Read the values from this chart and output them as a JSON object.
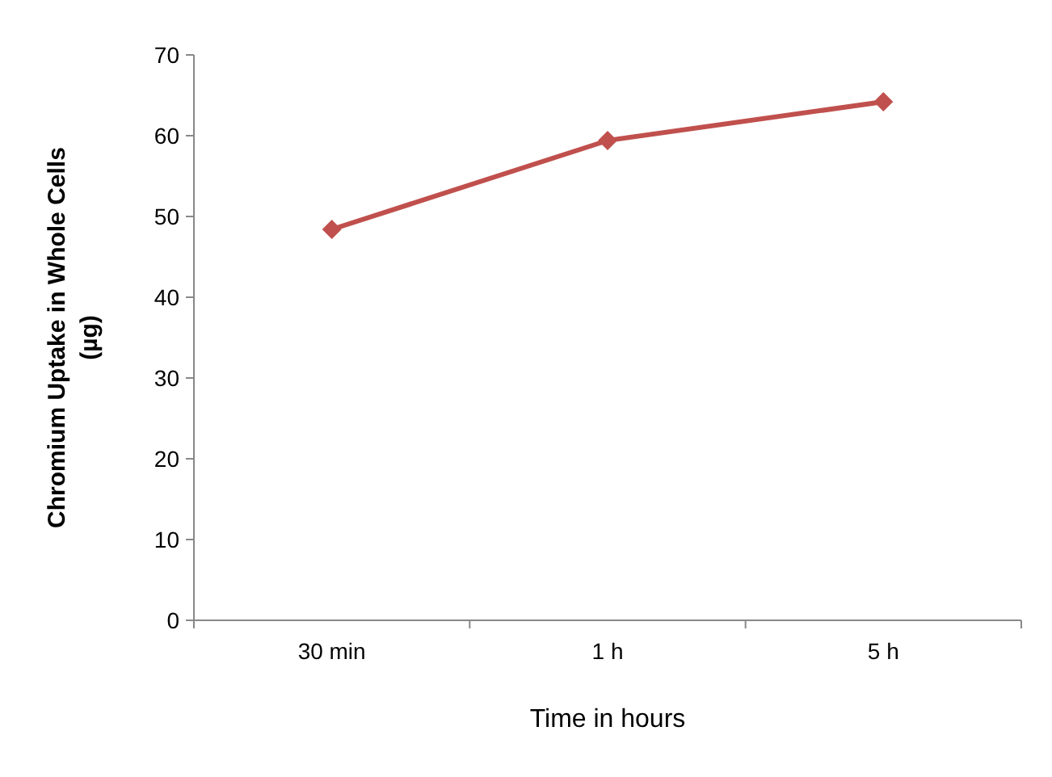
{
  "chart_data": {
    "type": "line",
    "xlabel": "Time in hours",
    "ylabel": "Chromium Uptake in Whole Cells (µg)",
    "categories": [
      "30 min",
      "1 h",
      "5 h"
    ],
    "series": [
      {
        "color": "#c0504d",
        "values": [
          48.4,
          59.4,
          64.2
        ]
      }
    ],
    "ylim": [
      0,
      70
    ],
    "yticks": [
      0,
      10,
      20,
      30,
      40,
      50,
      60,
      70
    ],
    "grid": false,
    "marker": "diamond",
    "line_style": "solid"
  }
}
